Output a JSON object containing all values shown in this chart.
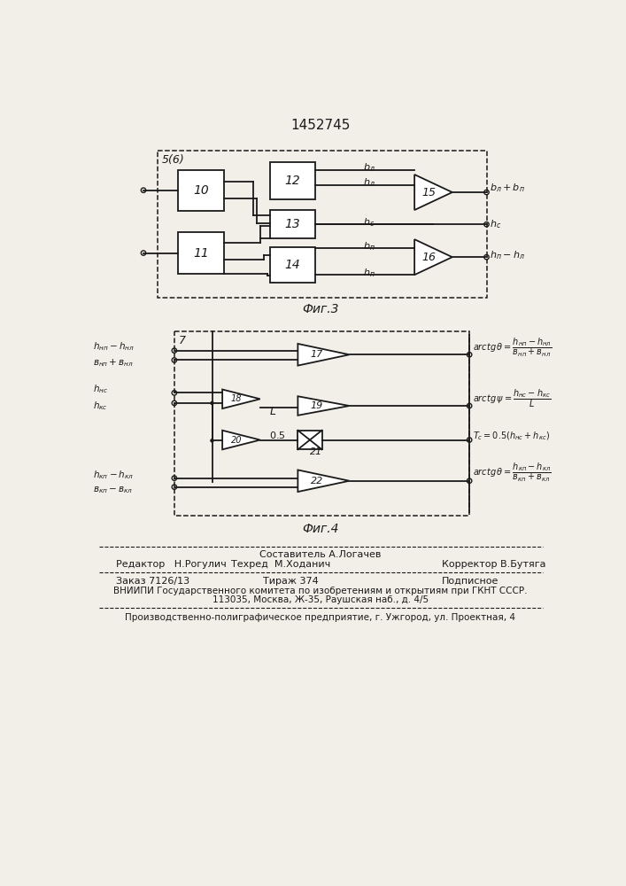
{
  "title": "1452745",
  "fig3_caption": "Фиг.3",
  "fig4_caption": "Фиг.4",
  "bg_color": "#f2efe8",
  "line_color": "#1a1a1a",
  "footer1": "Составитель А.Логачев",
  "footer2a": "Редактор   Н.Рогулич",
  "footer2b": "Техред  М.Ходанич",
  "footer2c": "Корректор В.Бутяга",
  "footer3a": "Заказ 7126/13",
  "footer3b": "Тираж 374",
  "footer3c": "Подписное",
  "footer4": "ВНИИПИ Государственного комитета по изобретениям и открытиям при ГКНТ СССР.",
  "footer5": "113035, Москва, Ж-35, Раушская наб., д. 4/5",
  "footer6": "Производственно-полиграфическое предприятие, г. Ужгород, ул. Проектная, 4"
}
